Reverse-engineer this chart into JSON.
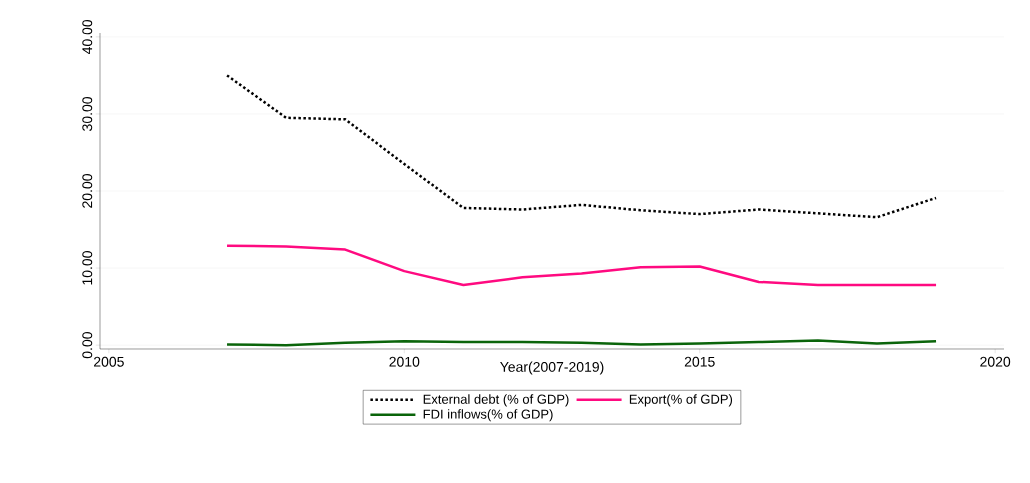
{
  "chart_data": {
    "type": "line",
    "xlabel": "Year(2007-2019)",
    "x": [
      2007,
      2008,
      2009,
      2010,
      2011,
      2012,
      2013,
      2014,
      2015,
      2016,
      2017,
      2018,
      2019
    ],
    "series": [
      {
        "name": "External debt (% of GDP)",
        "color": "#000000",
        "line_style": "dotted",
        "values": [
          35.0,
          29.5,
          29.3,
          23.5,
          17.8,
          17.6,
          18.2,
          17.5,
          17.0,
          17.6,
          17.1,
          16.6,
          19.1
        ]
      },
      {
        "name": "Export(% of GDP)",
        "color": "#ff0a80",
        "line_style": "solid",
        "values": [
          12.9,
          12.8,
          12.4,
          9.6,
          7.8,
          8.8,
          9.3,
          10.1,
          10.2,
          8.2,
          7.8,
          7.8,
          7.8
        ]
      },
      {
        "name": "FDI inflows(% of GDP)",
        "color": "#0a640a",
        "line_style": "solid",
        "values": [
          0.1,
          0.0,
          0.3,
          0.5,
          0.4,
          0.4,
          0.3,
          0.1,
          0.2,
          0.4,
          0.6,
          0.2,
          0.5
        ]
      }
    ],
    "xlim": [
      2004.85,
      2020.15
    ],
    "ylim": [
      -0.5,
      40.5
    ],
    "xticks": [
      2005,
      2010,
      2015,
      2020
    ],
    "yticks": [
      {
        "value": 0,
        "label": "0.00"
      },
      {
        "value": 10,
        "label": "10.00"
      },
      {
        "value": 20,
        "label": "20.00"
      },
      {
        "value": 30,
        "label": "30.00"
      },
      {
        "value": 40,
        "label": "40.00"
      }
    ],
    "grid": "y",
    "legend": "bottom",
    "marker": "none"
  }
}
